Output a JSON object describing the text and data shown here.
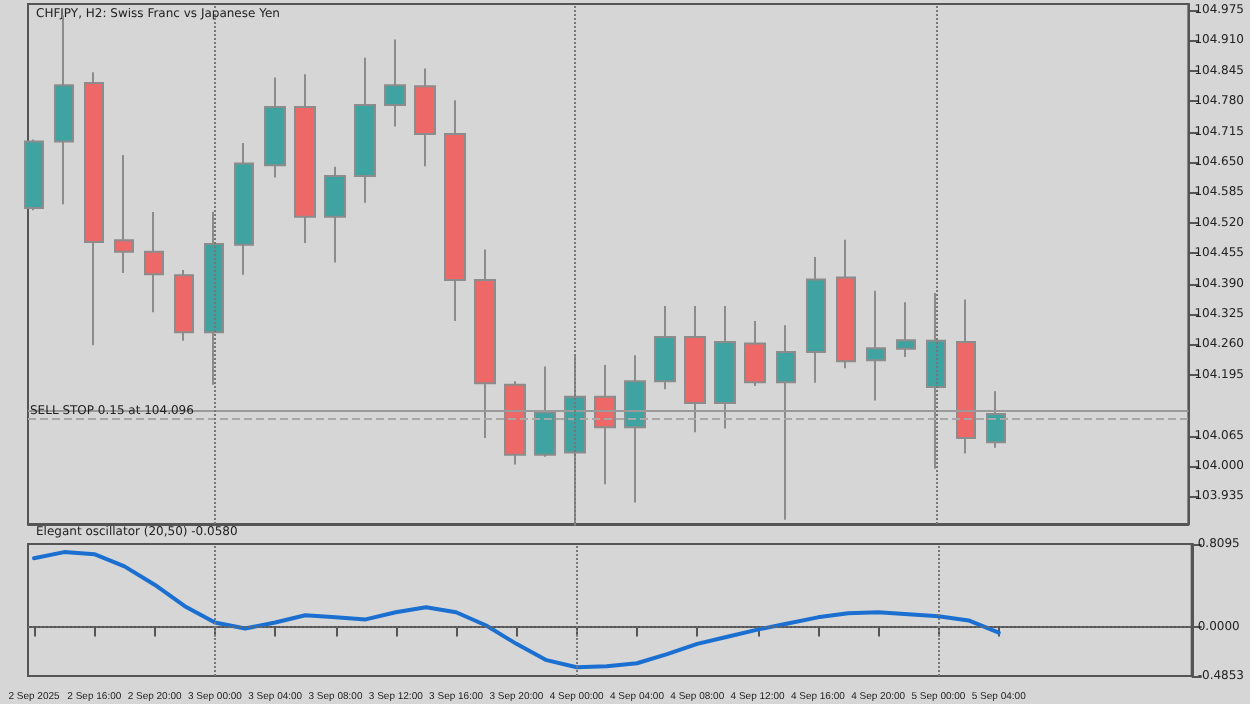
{
  "chart_data": [
    {
      "type": "candlestick",
      "title": "CHFJPY, H2: Swiss Franc vs Japanese Yen",
      "x": [
        "2025-09-02T12:00",
        "2025-09-02T14:00",
        "2025-09-02T16:00",
        "2025-09-02T18:00",
        "2025-09-02T20:00",
        "2025-09-02T22:00",
        "2025-09-03T00:00",
        "2025-09-03T02:00",
        "2025-09-03T04:00",
        "2025-09-03T06:00",
        "2025-09-03T08:00",
        "2025-09-03T10:00",
        "2025-09-03T12:00",
        "2025-09-03T14:00",
        "2025-09-03T16:00",
        "2025-09-03T18:00",
        "2025-09-03T20:00",
        "2025-09-03T22:00",
        "2025-09-04T00:00",
        "2025-09-04T02:00",
        "2025-09-04T04:00",
        "2025-09-04T06:00",
        "2025-09-04T08:00",
        "2025-09-04T10:00",
        "2025-09-04T12:00",
        "2025-09-04T14:00",
        "2025-09-04T16:00",
        "2025-09-04T18:00",
        "2025-09-04T20:00",
        "2025-09-04T22:00",
        "2025-09-05T00:00",
        "2025-09-05T02:00",
        "2025-09-05T04:00"
      ],
      "ohlc": [
        [
          104.552,
          104.698,
          104.547,
          104.694
        ],
        [
          104.694,
          104.964,
          104.56,
          104.814
        ],
        [
          104.819,
          104.842,
          104.258,
          104.479
        ],
        [
          104.483,
          104.665,
          104.413,
          104.458
        ],
        [
          104.458,
          104.543,
          104.329,
          104.41
        ],
        [
          104.408,
          104.419,
          104.268,
          104.286
        ],
        [
          104.286,
          104.544,
          104.174,
          104.475
        ],
        [
          104.473,
          104.691,
          104.409,
          104.647
        ],
        [
          104.643,
          104.831,
          104.617,
          104.768
        ],
        [
          104.768,
          104.838,
          104.477,
          104.533
        ],
        [
          104.533,
          104.64,
          104.435,
          104.62
        ],
        [
          104.62,
          104.873,
          104.563,
          104.772
        ],
        [
          104.772,
          104.912,
          104.726,
          104.814
        ],
        [
          104.812,
          104.85,
          104.641,
          104.71
        ],
        [
          104.71,
          104.782,
          104.31,
          104.398
        ],
        [
          104.398,
          104.463,
          104.06,
          104.177
        ],
        [
          104.174,
          104.181,
          104.003,
          104.024
        ],
        [
          104.024,
          104.213,
          104.02,
          104.115
        ],
        [
          104.029,
          104.237,
          103.873,
          104.148
        ],
        [
          104.148,
          104.216,
          103.961,
          104.083
        ],
        [
          104.083,
          104.237,
          103.922,
          104.181
        ],
        [
          104.181,
          104.342,
          104.164,
          104.276
        ],
        [
          104.276,
          104.342,
          104.072,
          104.135
        ],
        [
          104.135,
          104.342,
          104.08,
          104.265
        ],
        [
          104.262,
          104.31,
          104.171,
          104.179
        ],
        [
          104.179,
          104.301,
          103.885,
          104.244
        ],
        [
          104.244,
          104.447,
          104.178,
          104.399
        ],
        [
          104.403,
          104.484,
          104.209,
          104.224
        ],
        [
          104.226,
          104.375,
          104.14,
          104.252
        ],
        [
          104.251,
          104.35,
          104.233,
          104.269
        ],
        [
          104.169,
          104.37,
          103.994,
          104.268
        ],
        [
          104.265,
          104.356,
          104.027,
          104.06
        ],
        [
          104.051,
          104.16,
          104.039,
          104.111
        ]
      ],
      "colors": [
        "#3fa3a1",
        "#3fa3a1",
        "#ef6868",
        "#ef6868",
        "#ef6868",
        "#ef6868",
        "#3fa3a1",
        "#3fa3a1",
        "#3fa3a1",
        "#ef6868",
        "#3fa3a1",
        "#3fa3a1",
        "#3fa3a1",
        "#ef6868",
        "#ef6868",
        "#ef6868",
        "#ef6868",
        "#3fa3a1",
        "#3fa3a1",
        "#ef6868",
        "#3fa3a1",
        "#3fa3a1",
        "#ef6868",
        "#3fa3a1",
        "#ef6868",
        "#3fa3a1",
        "#3fa3a1",
        "#ef6868",
        "#3fa3a1",
        "#3fa3a1",
        "#3fa3a1",
        "#ef6868",
        "#3fa3a1"
      ],
      "xlim": [
        "2025-09-02T11:36",
        "2025-09-05T16:48"
      ],
      "ylim": [
        103.876,
        104.988
      ],
      "yticks": [
        103.935,
        {
          "value": 104.0,
          "label": "104.000"
        },
        104.065,
        104.195,
        {
          "value": 104.26,
          "label": "104.260"
        },
        104.325,
        {
          "value": 104.39,
          "label": "104.390"
        },
        104.455,
        {
          "value": 104.52,
          "label": "104.520"
        },
        104.585,
        {
          "value": 104.65,
          "label": "104.650"
        },
        104.715,
        {
          "value": 104.78,
          "label": "104.780"
        },
        104.845,
        {
          "value": 104.91,
          "label": "104.910"
        },
        104.975
      ],
      "tick_labels": "y",
      "grid": false,
      "ref_lines": [
        {
          "axis": "y",
          "value": 104.12,
          "color": "#9a9a9a",
          "line_style": "solid"
        },
        {
          "axis": "y",
          "value": 104.096,
          "label": "SELL STOP 0.15 at 104.096",
          "color": "#a8a8a8",
          "line_style": "dashed"
        },
        {
          "axis": "x",
          "value": "2025-09-03T00:00",
          "color": "#777777",
          "line_style": "dotted"
        },
        {
          "axis": "x",
          "value": "2025-09-04T00:00",
          "color": "#777777",
          "line_style": "dotted"
        },
        {
          "axis": "x",
          "value": "2025-09-05T00:00",
          "color": "#777777",
          "line_style": "dotted"
        }
      ]
    },
    {
      "type": "line",
      "title": "Elegant oscillator (20,50) -0.0580",
      "x": [
        "2025-09-02T12:00",
        "2025-09-02T14:00",
        "2025-09-02T16:00",
        "2025-09-02T18:00",
        "2025-09-02T20:00",
        "2025-09-02T22:00",
        "2025-09-03T00:00",
        "2025-09-03T02:00",
        "2025-09-03T04:00",
        "2025-09-03T06:00",
        "2025-09-03T08:00",
        "2025-09-03T10:00",
        "2025-09-03T12:00",
        "2025-09-03T14:00",
        "2025-09-03T16:00",
        "2025-09-03T18:00",
        "2025-09-03T20:00",
        "2025-09-03T22:00",
        "2025-09-04T00:00",
        "2025-09-04T02:00",
        "2025-09-04T04:00",
        "2025-09-04T06:00",
        "2025-09-04T08:00",
        "2025-09-04T10:00",
        "2025-09-04T12:00",
        "2025-09-04T14:00",
        "2025-09-04T16:00",
        "2025-09-04T18:00",
        "2025-09-04T20:00",
        "2025-09-04T22:00",
        "2025-09-05T00:00",
        "2025-09-05T02:00",
        "2025-09-05T04:00"
      ],
      "series": [
        {
          "color": "#1a6fd0",
          "values": [
            0.67,
            0.73,
            0.71,
            0.59,
            0.41,
            0.2,
            0.04,
            -0.02,
            0.04,
            0.11,
            0.09,
            0.07,
            0.14,
            0.19,
            0.14,
            0.01,
            -0.17,
            -0.33,
            -0.4,
            -0.39,
            -0.36,
            -0.27,
            -0.17,
            -0.1,
            -0.03,
            0.03,
            0.09,
            0.13,
            0.14,
            0.12,
            0.1,
            0.06,
            -0.06
          ]
        }
      ],
      "marker": "none",
      "line_style": "solid",
      "grid": false,
      "xlim": [
        "2025-09-02T11:36",
        "2025-09-05T16:48"
      ],
      "xticks": [
        {
          "value": "2025-09-02T12:00",
          "label": "2 Sep 2025"
        },
        {
          "value": "2025-09-02T16:00",
          "label": "2 Sep 16:00"
        },
        {
          "value": "2025-09-02T20:00",
          "label": "2 Sep 20:00"
        },
        {
          "value": "2025-09-03T00:00",
          "label": "3 Sep 00:00"
        },
        {
          "value": "2025-09-03T04:00",
          "label": "3 Sep 04:00"
        },
        {
          "value": "2025-09-03T08:00",
          "label": "3 Sep 08:00"
        },
        {
          "value": "2025-09-03T12:00",
          "label": "3 Sep 12:00"
        },
        {
          "value": "2025-09-03T16:00",
          "label": "3 Sep 16:00"
        },
        {
          "value": "2025-09-03T20:00",
          "label": "3 Sep 20:00"
        },
        {
          "value": "2025-09-04T00:00",
          "label": "4 Sep 00:00"
        },
        {
          "value": "2025-09-04T04:00",
          "label": "4 Sep 04:00"
        },
        {
          "value": "2025-09-04T08:00",
          "label": "4 Sep 08:00"
        },
        {
          "value": "2025-09-04T12:00",
          "label": "4 Sep 12:00"
        },
        {
          "value": "2025-09-04T16:00",
          "label": "4 Sep 16:00"
        },
        {
          "value": "2025-09-04T20:00",
          "label": "4 Sep 20:00"
        },
        {
          "value": "2025-09-05T00:00",
          "label": "5 Sep 00:00"
        },
        {
          "value": "2025-09-05T04:00",
          "label": "5 Sep 04:00"
        }
      ],
      "ylim": [
        -0.4853,
        0.8095
      ],
      "yticks": [
        -0.4853,
        {
          "value": 0,
          "label": "0.0000"
        },
        0.8095
      ],
      "ref_lines": [
        {
          "axis": "y",
          "value": 0,
          "color": "#666666",
          "line_style": "dotted"
        },
        {
          "axis": "x",
          "value": "2025-09-03T00:00",
          "color": "#777777",
          "line_style": "dotted"
        },
        {
          "axis": "x",
          "value": "2025-09-04T00:00",
          "color": "#777777",
          "line_style": "dotted"
        },
        {
          "axis": "x",
          "value": "2025-09-05T00:00",
          "color": "#777777",
          "line_style": "dotted"
        }
      ]
    }
  ]
}
